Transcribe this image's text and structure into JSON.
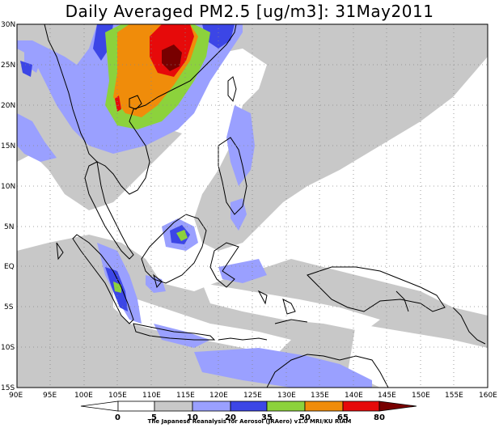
{
  "title": "Daily Averaged PM2.5 [ug/m3]: 31May2011",
  "credit": "The Japanese Reanalysis for Aerosol (JRAero) v1.0 MRI/KU RIAM",
  "lat_labels": [
    "30N",
    "25N",
    "20N",
    "15N",
    "10N",
    "5N",
    "EQ",
    "5S",
    "10S",
    "15S"
  ],
  "lon_labels": [
    "90E",
    "95E",
    "100E",
    "105E",
    "110E",
    "115E",
    "120E",
    "125E",
    "130E",
    "135E",
    "140E",
    "145E",
    "150E",
    "155E",
    "160E"
  ],
  "colorbar": {
    "levels": [
      "0",
      "5",
      "10",
      "20",
      "35",
      "50",
      "65",
      "80"
    ],
    "colors": [
      "#ffffff",
      "#ffffff",
      "#c8c8c8",
      "#9aa0ff",
      "#3c46e6",
      "#8cd23c",
      "#f08c0a",
      "#e60a0a",
      "#780000"
    ]
  },
  "palette": {
    "gray": "#c8c8c8",
    "lightblue": "#9aa0ff",
    "blue": "#3c46e6",
    "green": "#8cd23c",
    "orange": "#f08c0a",
    "red": "#e60a0a",
    "darkred": "#780000"
  }
}
